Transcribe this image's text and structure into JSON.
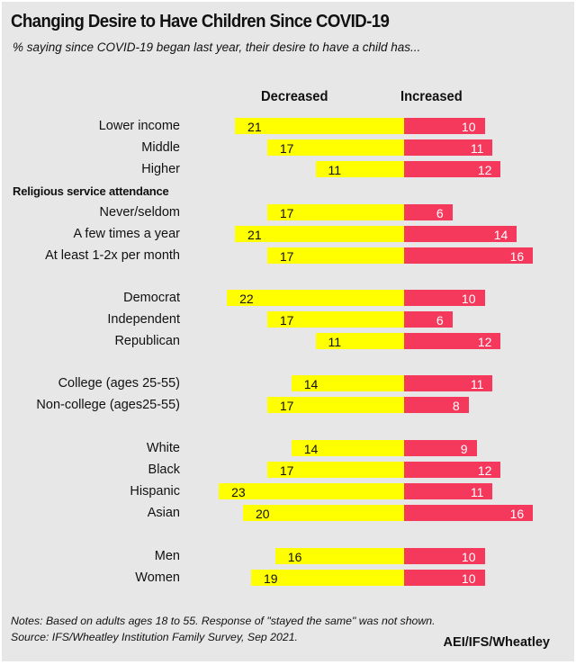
{
  "title": "Changing Desire to Have Children Since COVID-19",
  "subtitle": "% saying since COVID-19  began last year, their desire to have a child has...",
  "notes": [
    "Notes: Based on adults ages 18 to 55. Response of \"stayed the same\" was not shown.",
    "Source: IFS/Wheatley Institution Family Survey, Sep 2021."
  ],
  "brand": "AEI/IFS/Wheatley",
  "colors": {
    "decreased": "#ffff00",
    "increased": "#f5395c",
    "background": "#e7e7e7"
  },
  "chart_data": {
    "type": "bar",
    "orientation": "horizontal-diverging",
    "title": "Changing Desire to Have Children Since COVID-19",
    "subtitle": "% saying since COVID-19  began last year, their desire to have a child has...",
    "legend": [
      "Decreased",
      "Increased"
    ],
    "series_names": {
      "decreased": "Decreased",
      "increased": "Increased"
    },
    "groups": [
      {
        "heading": "",
        "rows": [
          {
            "label": "Lower income",
            "decreased": 21,
            "increased": 10
          },
          {
            "label": "Middle",
            "decreased": 17,
            "increased": 11
          },
          {
            "label": "Higher",
            "decreased": 11,
            "increased": 12
          }
        ]
      },
      {
        "heading": "Religious service attendance",
        "rows": [
          {
            "label": "Never/seldom",
            "decreased": 17,
            "increased": 6
          },
          {
            "label": "A few times a year",
            "decreased": 21,
            "increased": 14
          },
          {
            "label": "At least 1-2x per month",
            "decreased": 17,
            "increased": 16
          }
        ]
      },
      {
        "heading": "",
        "rows": [
          {
            "label": "Democrat",
            "decreased": 22,
            "increased": 10
          },
          {
            "label": "Independent",
            "decreased": 17,
            "increased": 6
          },
          {
            "label": "Republican",
            "decreased": 11,
            "increased": 12
          }
        ]
      },
      {
        "heading": "",
        "rows": [
          {
            "label": "College (ages 25-55)",
            "decreased": 14,
            "increased": 11
          },
          {
            "label": "Non-college (ages25-55)",
            "decreased": 17,
            "increased": 8
          }
        ]
      },
      {
        "heading": "",
        "rows": [
          {
            "label": "White",
            "decreased": 14,
            "increased": 9
          },
          {
            "label": "Black",
            "decreased": 17,
            "increased": 12
          },
          {
            "label": "Hispanic",
            "decreased": 23,
            "increased": 11
          },
          {
            "label": "Asian",
            "decreased": 20,
            "increased": 16
          }
        ]
      },
      {
        "heading": "",
        "rows": [
          {
            "label": "Men",
            "decreased": 16,
            "increased": 10
          },
          {
            "label": "Women",
            "decreased": 19,
            "increased": 10
          }
        ]
      }
    ],
    "xlabel": "",
    "ylabel": "",
    "grid": false
  }
}
